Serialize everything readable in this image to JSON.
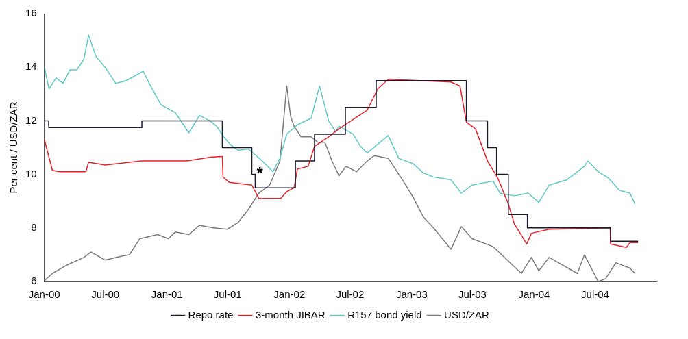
{
  "chart_data": {
    "type": "line",
    "ylabel": "Per cent / USD/ZAR",
    "ylim": [
      6,
      16
    ],
    "yticks": [
      6,
      8,
      10,
      12,
      14,
      16
    ],
    "xlim": [
      "2000-01-01",
      "2004-12-31"
    ],
    "xticks": [
      {
        "value": "2000-01-01",
        "label": "Jan-00"
      },
      {
        "value": "2000-07-01",
        "label": "Jul-00"
      },
      {
        "value": "2001-01-01",
        "label": "Jan-01"
      },
      {
        "value": "2001-07-01",
        "label": "Jul-01"
      },
      {
        "value": "2002-01-01",
        "label": "Jan-02"
      },
      {
        "value": "2002-07-01",
        "label": "Jul-02"
      },
      {
        "value": "2003-01-01",
        "label": "Jan-03"
      },
      {
        "value": "2003-07-01",
        "label": "Jul-03"
      },
      {
        "value": "2004-01-01",
        "label": "Jan-04"
      },
      {
        "value": "2004-07-01",
        "label": "Jul-04"
      }
    ],
    "grid": false,
    "legend": "bottom",
    "annotations": [
      "*"
    ],
    "series": [
      {
        "name": "Repo rate",
        "type": "step",
        "color": "#1a1a2e",
        "x": [
          "2000-01-01",
          "2000-01-14",
          "2000-10-18",
          "2001-06-15",
          "2001-09-11",
          "2001-09-21",
          "2002-01-19",
          "2002-03-17",
          "2002-06-17",
          "2002-09-17",
          "2003-06-13",
          "2003-08-15",
          "2003-09-11",
          "2003-10-16",
          "2003-12-12",
          "2004-08-16",
          "2004-11-06"
        ],
        "values": [
          12,
          11.75,
          12,
          11,
          10,
          9.5,
          10.5,
          11.5,
          12.5,
          13.5,
          12,
          11,
          10,
          8.5,
          8,
          7.5,
          7.5
        ]
      },
      {
        "name": "3-month JIBAR",
        "type": "line",
        "color": "#e8202a",
        "x": [
          "2000-01-01",
          "2000-01-25",
          "2000-02-15",
          "2000-05-04",
          "2000-05-12",
          "2000-07-01",
          "2000-10-16",
          "2001-03-01",
          "2001-05-15",
          "2001-06-15",
          "2001-06-17",
          "2001-07-06",
          "2001-09-11",
          "2001-10-02",
          "2001-12-06",
          "2001-12-24",
          "2002-01-15",
          "2002-01-25",
          "2002-02-26",
          "2002-03-17",
          "2002-04-28",
          "2002-05-29",
          "2002-07-10",
          "2002-08-21",
          "2002-09-22",
          "2002-10-23",
          "2003-04-28",
          "2003-05-25",
          "2003-06-13",
          "2003-07-10",
          "2003-08-15",
          "2003-09-15",
          "2003-10-16",
          "2003-11-03",
          "2003-12-10",
          "2003-12-24",
          "2004-02-15",
          "2004-08-15",
          "2004-08-16",
          "2004-10-02",
          "2004-10-13",
          "2004-11-06"
        ],
        "values": [
          11.3,
          10.15,
          10.1,
          10.1,
          10.45,
          10.35,
          10.5,
          10.5,
          10.65,
          10.67,
          9.9,
          9.7,
          9.6,
          9.1,
          9.1,
          9.35,
          9.5,
          10.2,
          10.3,
          11.05,
          11.4,
          11.7,
          12.05,
          12.4,
          13.2,
          13.55,
          13.45,
          13.3,
          11.95,
          11.7,
          10.5,
          9.85,
          8.9,
          8.15,
          7.4,
          7.8,
          7.95,
          8.0,
          7.4,
          7.27,
          7.45,
          7.45
        ]
      },
      {
        "name": "R157 bond yield",
        "type": "line",
        "color": "#5fc8c8",
        "x": [
          "2000-01-01",
          "2000-01-15",
          "2000-02-05",
          "2000-02-26",
          "2000-03-17",
          "2000-04-07",
          "2000-04-28",
          "2000-05-12",
          "2000-06-03",
          "2000-06-30",
          "2000-08-01",
          "2000-09-01",
          "2000-10-22",
          "2000-11-13",
          "2000-12-14",
          "2001-01-26",
          "2001-03-07",
          "2001-04-08",
          "2001-05-09",
          "2001-05-29",
          "2001-06-19",
          "2001-07-10",
          "2001-08-01",
          "2001-09-01",
          "2001-10-12",
          "2001-11-13",
          "2001-12-04",
          "2001-12-24",
          "2002-01-25",
          "2002-03-07",
          "2002-04-01",
          "2002-04-28",
          "2002-05-19",
          "2002-05-29",
          "2002-07-10",
          "2002-08-01",
          "2002-08-21",
          "2002-10-23",
          "2002-11-23",
          "2003-01-05",
          "2003-02-05",
          "2003-03-07",
          "2003-04-28",
          "2003-05-29",
          "2003-06-30",
          "2003-09-01",
          "2003-09-21",
          "2003-11-03",
          "2003-12-14",
          "2004-01-15",
          "2004-02-15",
          "2004-04-08",
          "2004-05-30",
          "2004-06-09",
          "2004-07-10",
          "2004-08-11",
          "2004-09-12",
          "2004-10-13",
          "2004-10-28"
        ],
        "values": [
          14.0,
          13.2,
          13.6,
          13.4,
          13.9,
          13.9,
          14.3,
          15.2,
          14.4,
          14.0,
          13.4,
          13.5,
          13.85,
          13.3,
          12.6,
          12.3,
          11.55,
          12.2,
          12.0,
          11.8,
          11.4,
          11.1,
          10.9,
          10.95,
          10.5,
          10.1,
          10.6,
          11.5,
          11.85,
          12.1,
          13.3,
          12.0,
          11.6,
          11.8,
          11.5,
          11.05,
          10.8,
          11.45,
          10.6,
          10.4,
          10.05,
          9.9,
          9.8,
          9.3,
          9.6,
          9.75,
          9.3,
          9.2,
          9.3,
          8.95,
          9.6,
          9.8,
          10.3,
          10.5,
          10.1,
          9.85,
          9.4,
          9.3,
          8.9
        ]
      },
      {
        "name": "USD/ZAR",
        "type": "line",
        "color": "#7a7a7a",
        "x": [
          "2000-01-01",
          "2000-01-25",
          "2000-03-06",
          "2000-04-28",
          "2000-05-19",
          "2000-06-30",
          "2000-08-21",
          "2000-09-11",
          "2000-10-12",
          "2000-12-04",
          "2001-01-05",
          "2001-01-26",
          "2001-03-07",
          "2001-04-08",
          "2001-05-19",
          "2001-06-30",
          "2001-08-01",
          "2001-09-01",
          "2001-10-02",
          "2001-11-03",
          "2001-12-04",
          "2001-12-14",
          "2001-12-24",
          "2002-01-05",
          "2002-01-15",
          "2002-02-05",
          "2002-03-07",
          "2002-03-27",
          "2002-04-17",
          "2002-05-08",
          "2002-05-29",
          "2002-06-19",
          "2002-07-20",
          "2002-08-21",
          "2002-09-11",
          "2002-10-23",
          "2002-12-04",
          "2003-01-05",
          "2003-02-05",
          "2003-03-07",
          "2003-04-28",
          "2003-05-29",
          "2003-06-30",
          "2003-09-01",
          "2003-11-24",
          "2003-12-24",
          "2004-01-15",
          "2004-02-15",
          "2004-05-09",
          "2004-05-30",
          "2004-07-10",
          "2004-08-01",
          "2004-09-01",
          "2004-10-13",
          "2004-10-28"
        ],
        "values": [
          6.03,
          6.3,
          6.6,
          6.9,
          7.1,
          6.8,
          6.95,
          7.0,
          7.6,
          7.75,
          7.6,
          7.85,
          7.75,
          8.1,
          8.0,
          7.95,
          8.2,
          8.7,
          9.3,
          9.6,
          10.5,
          11.9,
          13.3,
          12.15,
          11.8,
          11.4,
          11.4,
          11.2,
          11.2,
          10.5,
          9.95,
          10.3,
          10.1,
          10.5,
          10.7,
          10.6,
          9.8,
          9.15,
          8.4,
          8.0,
          7.2,
          8.05,
          7.6,
          7.3,
          6.3,
          6.9,
          6.4,
          6.9,
          6.3,
          7.0,
          6.0,
          6.1,
          6.7,
          6.5,
          6.3
        ]
      }
    ]
  }
}
